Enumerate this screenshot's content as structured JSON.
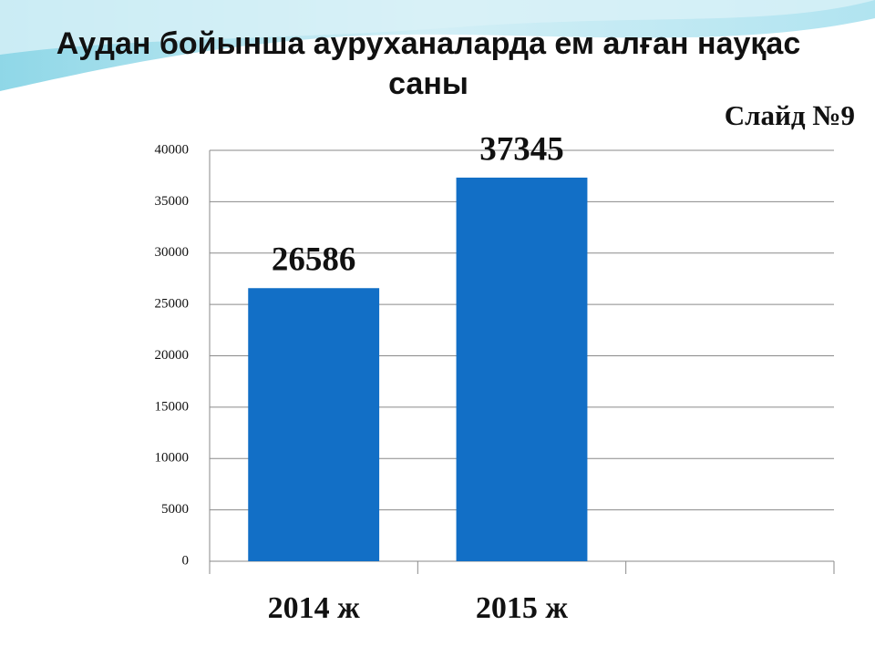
{
  "chart_data": {
    "type": "bar",
    "title": "Аудан бойынша ауруханаларда ем алған науқас саны",
    "annotation": "Слайд №9",
    "categories": [
      "2014 ж",
      "2015 ж",
      null
    ],
    "values": [
      26586,
      37345,
      null
    ],
    "color": "#126fc6",
    "ylim": [
      0,
      40000
    ],
    "yticks": [
      0,
      5000,
      10000,
      15000,
      20000,
      25000,
      30000,
      35000,
      40000
    ],
    "grid": true
  }
}
